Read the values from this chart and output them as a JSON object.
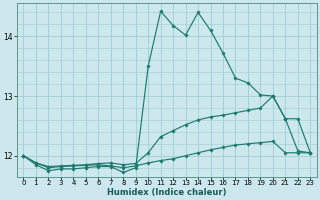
{
  "xlabel": "Humidex (Indice chaleur)",
  "background_color": "#cce8ec",
  "grid_color": "#9ecdd4",
  "line_color": "#1e7a70",
  "xlim": [
    -0.5,
    23.5
  ],
  "ylim": [
    11.65,
    14.55
  ],
  "yticks": [
    12,
    13,
    14
  ],
  "xticks": [
    0,
    1,
    2,
    3,
    4,
    5,
    6,
    7,
    8,
    9,
    10,
    11,
    12,
    13,
    14,
    15,
    16,
    17,
    18,
    19,
    20,
    21,
    22,
    23
  ],
  "series1_x": [
    0,
    1,
    2,
    3,
    4,
    5,
    6,
    7,
    8,
    9,
    10,
    11,
    12,
    13,
    14,
    15,
    16,
    17,
    18,
    19,
    20,
    21,
    22,
    23
  ],
  "series1_y": [
    12.0,
    11.85,
    11.75,
    11.78,
    11.78,
    11.8,
    11.82,
    11.82,
    11.72,
    11.8,
    13.5,
    14.42,
    14.18,
    14.02,
    14.4,
    14.1,
    13.72,
    13.3,
    13.22,
    13.02,
    13.0,
    12.62,
    12.62,
    12.05
  ],
  "series2_x": [
    0,
    1,
    2,
    3,
    4,
    5,
    6,
    7,
    8,
    9,
    10,
    11,
    12,
    13,
    14,
    15,
    16,
    17,
    18,
    19,
    20,
    21,
    22,
    23
  ],
  "series2_y": [
    12.0,
    11.88,
    11.82,
    11.83,
    11.84,
    11.85,
    11.87,
    11.88,
    11.85,
    11.87,
    12.05,
    12.32,
    12.42,
    12.52,
    12.6,
    12.65,
    12.68,
    12.72,
    12.76,
    12.8,
    13.0,
    12.62,
    12.08,
    12.05
  ],
  "series3_x": [
    0,
    1,
    2,
    3,
    4,
    5,
    6,
    7,
    8,
    9,
    10,
    11,
    12,
    13,
    14,
    15,
    16,
    17,
    18,
    19,
    20,
    21,
    22,
    23
  ],
  "series3_y": [
    12.0,
    11.88,
    11.8,
    11.82,
    11.83,
    11.84,
    11.85,
    11.83,
    11.8,
    11.83,
    11.88,
    11.92,
    11.95,
    12.0,
    12.05,
    12.1,
    12.14,
    12.18,
    12.2,
    12.22,
    12.24,
    12.05,
    12.05,
    12.05
  ]
}
